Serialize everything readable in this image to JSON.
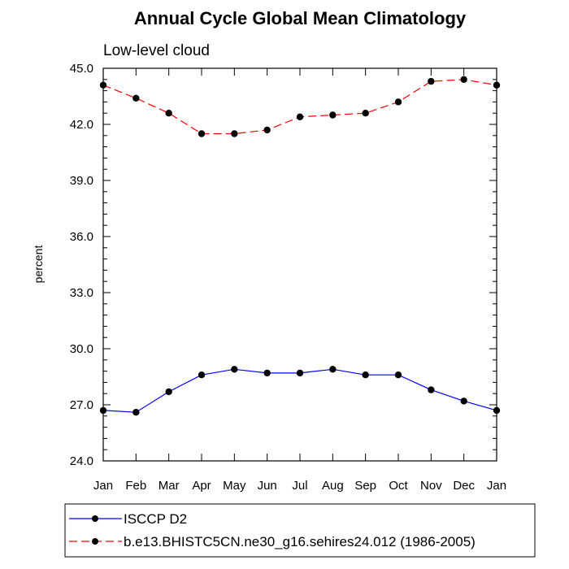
{
  "chart_data": {
    "type": "line",
    "title": "Annual Cycle Global Mean Climatology",
    "subtitle": "Low-level cloud",
    "ylabel": "percent",
    "xlabel": "",
    "ylim": [
      24.0,
      45.0
    ],
    "yticks": [
      "24.0",
      "27.0",
      "30.0",
      "33.0",
      "36.0",
      "39.0",
      "42.0",
      "45.0"
    ],
    "categories": [
      "Jan",
      "Feb",
      "Mar",
      "Apr",
      "May",
      "Jun",
      "Jul",
      "Aug",
      "Sep",
      "Oct",
      "Nov",
      "Dec",
      "Jan"
    ],
    "series": [
      {
        "name": "ISCCP D2",
        "color": "#0000ff",
        "dash": "solid",
        "values": [
          26.7,
          26.6,
          27.7,
          28.6,
          28.9,
          28.7,
          28.7,
          28.9,
          28.6,
          28.6,
          27.8,
          27.2,
          26.7
        ]
      },
      {
        "name": "b.e13.BHISTC5CN.ne30_g16.sehires24.012 (1986-2005)",
        "color": "#ff0000",
        "dash": "dashed",
        "values": [
          44.1,
          43.4,
          42.6,
          41.5,
          41.5,
          41.7,
          42.4,
          42.5,
          42.6,
          43.2,
          44.3,
          44.4,
          44.1
        ]
      }
    ],
    "grid": false,
    "legend_position": "bottom-left"
  }
}
